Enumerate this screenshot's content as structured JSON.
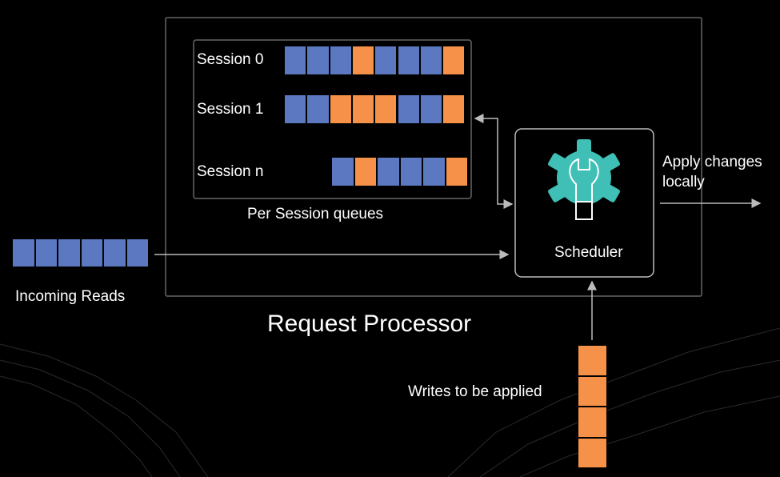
{
  "colors": {
    "read": "#5b78c0",
    "write": "#f59148",
    "gear": "#3fbfb6",
    "line": "#bbbbbb"
  },
  "icons": {
    "scheduler": "gear-wrench-icon"
  },
  "request_processor": {
    "label": "Request Processor"
  },
  "queues": {
    "label": "Per Session queues",
    "sessions": [
      {
        "label": "Session 0",
        "items": [
          "read",
          "read",
          "read",
          "write",
          "read",
          "read",
          "read",
          "write"
        ]
      },
      {
        "label": "Session 1",
        "items": [
          "read",
          "read",
          "write",
          "write",
          "write",
          "read",
          "read",
          "write"
        ]
      },
      {
        "label": "Session n",
        "items": [
          "read",
          "write",
          "read",
          "read",
          "read",
          "write"
        ]
      }
    ]
  },
  "incoming": {
    "label": "Incoming Reads",
    "items": [
      "read",
      "read",
      "read",
      "read",
      "read",
      "read"
    ]
  },
  "writes": {
    "label": "Writes to be applied",
    "items": [
      "write",
      "write",
      "write",
      "write"
    ]
  },
  "scheduler": {
    "label": "Scheduler"
  },
  "output": {
    "label_line1": "Apply changes",
    "label_line2": "locally"
  }
}
